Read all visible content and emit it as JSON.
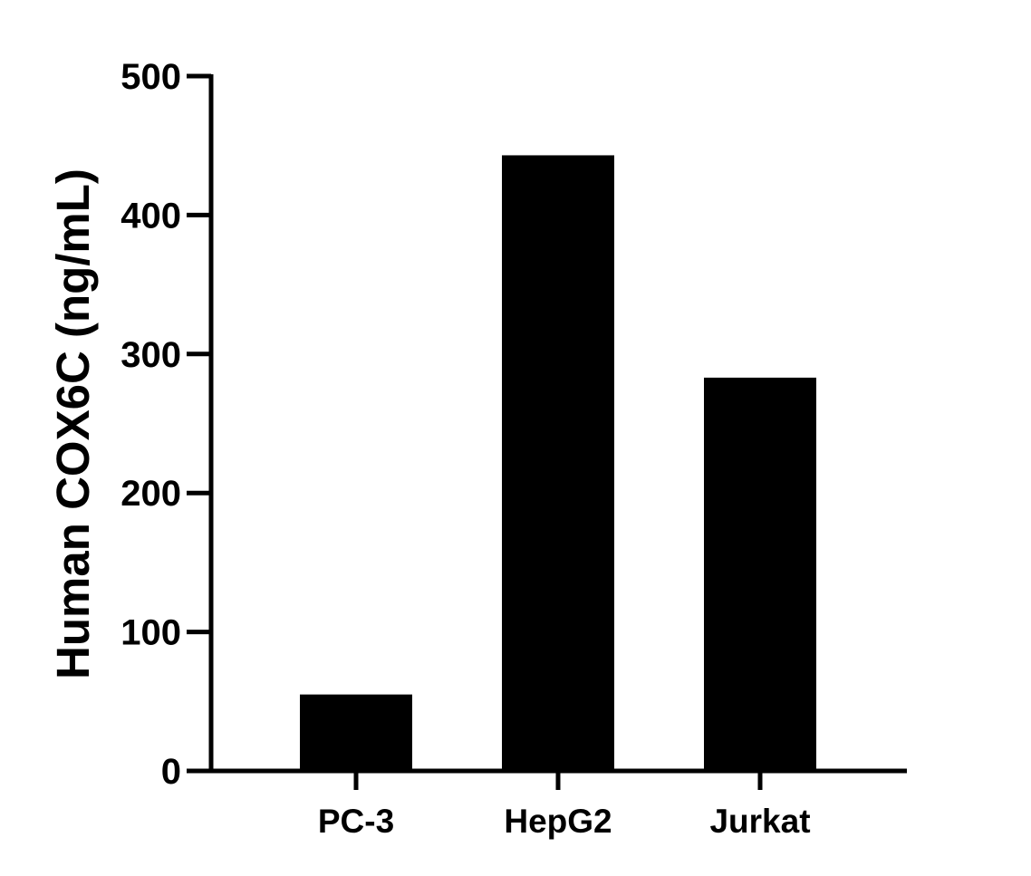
{
  "chart_data": {
    "type": "bar",
    "title": "",
    "xlabel": "",
    "ylabel": "Human COX6C (ng/mL)",
    "categories": [
      "PC-3",
      "HepG2",
      "Jurkat"
    ],
    "values": [
      55,
      443,
      283
    ],
    "ylim": [
      0,
      500
    ],
    "yticks": [
      "0",
      "100",
      "200",
      "300",
      "400",
      "500"
    ],
    "grid": false,
    "bar_color": "#000000"
  }
}
